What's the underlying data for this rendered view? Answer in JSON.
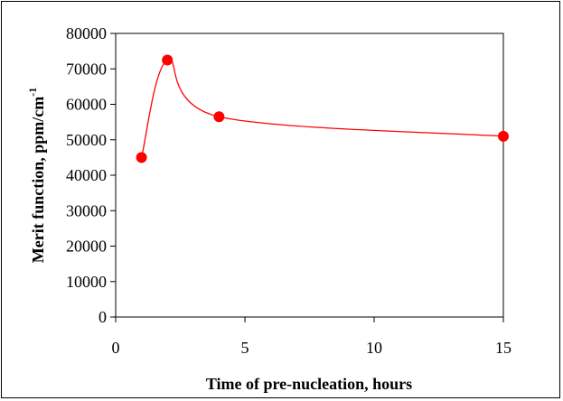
{
  "chart_data": {
    "type": "line",
    "title": "",
    "xlabel": "Time of pre-nucleation, hours",
    "ylabel_main": "Merit function, ppm/cm",
    "ylabel_superscript": "-1",
    "xlim": [
      0,
      15
    ],
    "ylim": [
      0,
      80000
    ],
    "x_ticks": [
      0,
      5,
      10,
      15
    ],
    "y_ticks": [
      0,
      10000,
      20000,
      30000,
      40000,
      50000,
      60000,
      70000,
      80000
    ],
    "grid": false,
    "legend": "none",
    "series": [
      {
        "color": "#ff0000",
        "smooth": true,
        "x": [
          1,
          2,
          4,
          15
        ],
        "y": [
          45000,
          72500,
          56500,
          51000
        ]
      }
    ]
  }
}
